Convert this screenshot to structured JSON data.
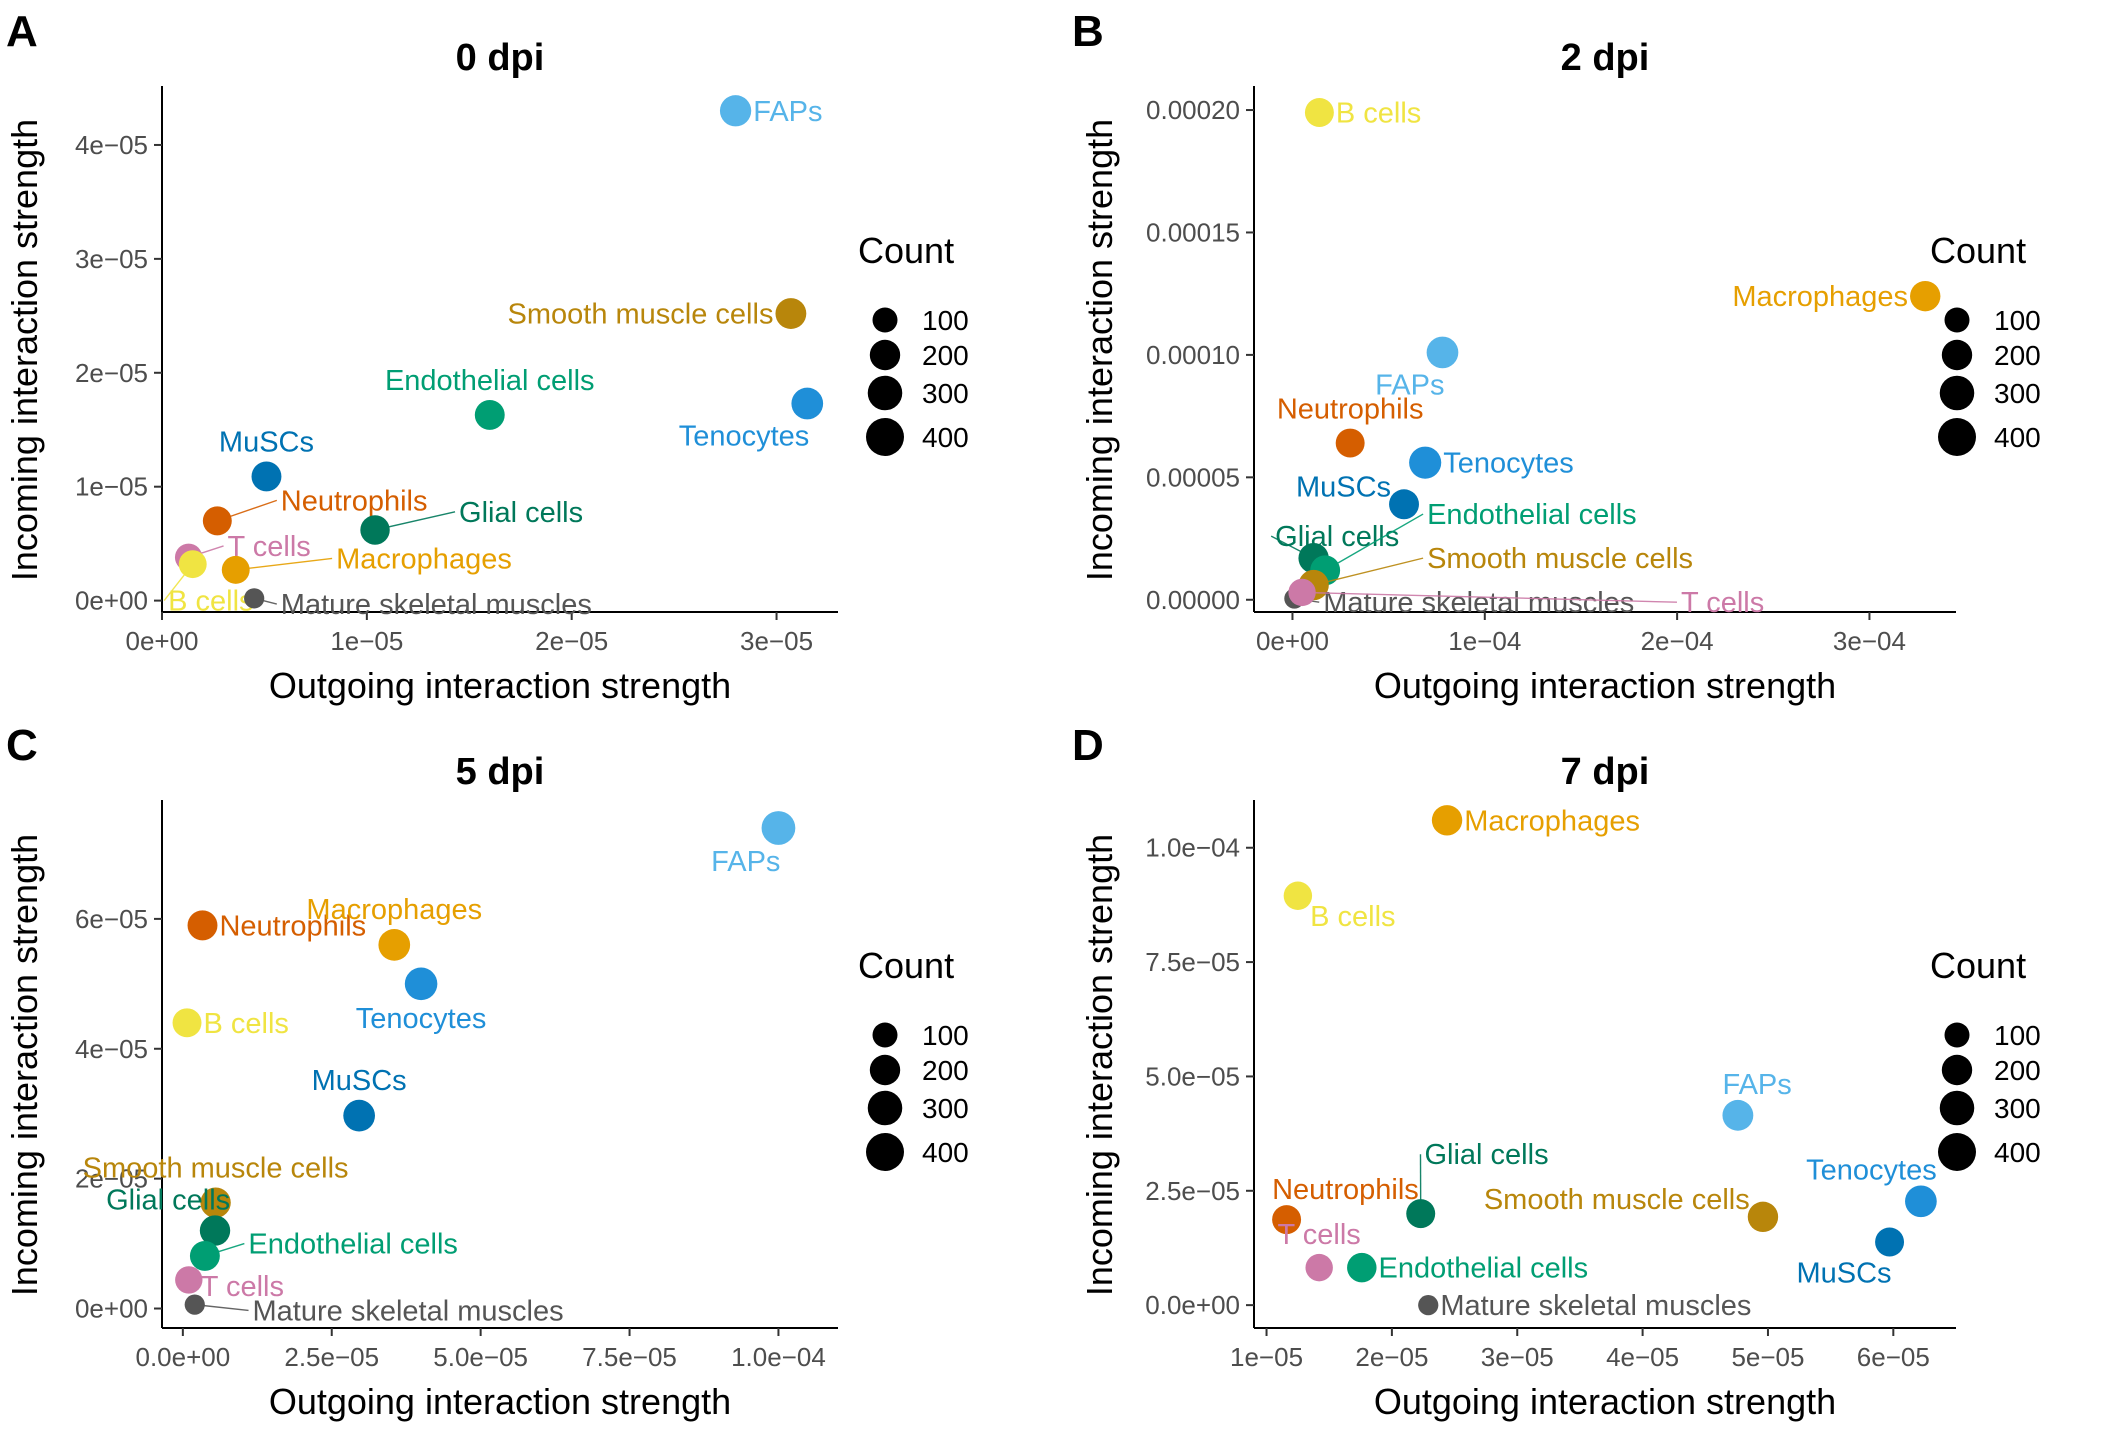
{
  "figure": {
    "xlabel": "Outgoing interaction strength",
    "ylabel": "Incoming interaction strength"
  },
  "chart_data": [
    {
      "type": "scatter",
      "panel_letter": "A",
      "title": "0 dpi",
      "xlabel": "Outgoing interaction strength",
      "ylabel": "Incoming interaction strength",
      "xlim": [
        0,
        3.3e-05
      ],
      "ylim": [
        -1e-06,
        4.5e-05
      ],
      "xticks": [
        {
          "value": 0,
          "label": "0e+00"
        },
        {
          "value": 1e-05,
          "label": "1e−05"
        },
        {
          "value": 2e-05,
          "label": "2e−05"
        },
        {
          "value": 3e-05,
          "label": "3e−05"
        }
      ],
      "yticks": [
        {
          "value": 0,
          "label": "0e+00"
        },
        {
          "value": 1e-05,
          "label": "1e−05"
        },
        {
          "value": 2e-05,
          "label": "2e−05"
        },
        {
          "value": 3e-05,
          "label": "3e−05"
        },
        {
          "value": 4e-05,
          "label": "4e−05"
        }
      ],
      "legend": {
        "title": "Count",
        "sizes": [
          100,
          200,
          300,
          400
        ],
        "labels": [
          "100",
          "200",
          "300",
          "400"
        ]
      },
      "points": [
        {
          "label": "FAPs",
          "x": 2.8e-05,
          "y": 4.3e-05,
          "count": 220,
          "color": "#56B4E9",
          "label_pos": "right"
        },
        {
          "label": "Smooth muscle cells",
          "x": 3.07e-05,
          "y": 2.52e-05,
          "count": 210,
          "color": "#B8860B",
          "label_pos": "left"
        },
        {
          "label": "Endothelial cells",
          "x": 1.6e-05,
          "y": 1.63e-05,
          "count": 190,
          "color": "#009E73",
          "label_pos": "above"
        },
        {
          "label": "Tenocytes",
          "x": 3.15e-05,
          "y": 1.73e-05,
          "count": 230,
          "color": "#1F8FD8",
          "label_pos": "below-left"
        },
        {
          "label": "MuSCs",
          "x": 5.1e-06,
          "y": 1.09e-05,
          "count": 190,
          "color": "#0072B2",
          "label_pos": "above"
        },
        {
          "label": "Neutrophils",
          "x": 2.7e-06,
          "y": 7e-06,
          "count": 170,
          "color": "#D55E00",
          "label_pos": "callout",
          "lx": 5.8e-06,
          "ly": 8.8e-06
        },
        {
          "label": "Glial cells",
          "x": 1.04e-05,
          "y": 6.2e-06,
          "count": 180,
          "color": "#00785A",
          "label_pos": "callout",
          "lx": 1.45e-05,
          "ly": 7.8e-06
        },
        {
          "label": "T cells",
          "x": 1.3e-06,
          "y": 3.8e-06,
          "count": 140,
          "color": "#CC79A7",
          "label_pos": "callout",
          "lx": 3.2e-06,
          "ly": 4.8e-06
        },
        {
          "label": "Macrophages",
          "x": 3.6e-06,
          "y": 2.7e-06,
          "count": 150,
          "color": "#E69F00",
          "label_pos": "callout",
          "lx": 8.5e-06,
          "ly": 3.7e-06
        },
        {
          "label": "B cells",
          "x": 1.5e-06,
          "y": 3.2e-06,
          "count": 150,
          "color": "#F0E442",
          "label_pos": "callout",
          "lx": 3e-07,
          "ly": 0.0
        },
        {
          "label": "Mature skeletal muscles",
          "x": 4.5e-06,
          "y": 2e-07,
          "count": 40,
          "color": "#555555",
          "label_pos": "callout",
          "lx": 5.8e-06,
          "ly": -3e-07
        }
      ]
    },
    {
      "type": "scatter",
      "panel_letter": "B",
      "title": "2 dpi",
      "xlabel": "Outgoing interaction strength",
      "ylabel": "Incoming interaction strength",
      "xlim": [
        -2e-05,
        0.000345
      ],
      "ylim": [
        -5e-06,
        0.000209
      ],
      "xticks": [
        {
          "value": 0,
          "label": "0e+00"
        },
        {
          "value": 0.0001,
          "label": "1e−04"
        },
        {
          "value": 0.0002,
          "label": "2e−04"
        },
        {
          "value": 0.0003,
          "label": "3e−04"
        }
      ],
      "yticks": [
        {
          "value": 0,
          "label": "0.00000"
        },
        {
          "value": 5e-05,
          "label": "0.00005"
        },
        {
          "value": 0.0001,
          "label": "0.00010"
        },
        {
          "value": 0.00015,
          "label": "0.00015"
        },
        {
          "value": 0.0002,
          "label": "0.00020"
        }
      ],
      "legend": {
        "title": "Count",
        "sizes": [
          100,
          200,
          300,
          400
        ],
        "labels": [
          "100",
          "200",
          "300",
          "400"
        ]
      },
      "points": [
        {
          "label": "B cells",
          "x": 1.4e-05,
          "y": 0.000199,
          "count": 170,
          "color": "#F0E442",
          "label_pos": "right"
        },
        {
          "label": "Macrophages",
          "x": 0.000329,
          "y": 0.000124,
          "count": 200,
          "color": "#E69F00",
          "label_pos": "left"
        },
        {
          "label": "FAPs",
          "x": 7.8e-05,
          "y": 0.000101,
          "count": 230,
          "color": "#56B4E9",
          "label_pos": "below-left"
        },
        {
          "label": "Neutrophils",
          "x": 3e-05,
          "y": 6.4e-05,
          "count": 170,
          "color": "#D55E00",
          "label_pos": "above"
        },
        {
          "label": "Tenocytes",
          "x": 6.9e-05,
          "y": 5.6e-05,
          "count": 240,
          "color": "#1F8FD8",
          "label_pos": "right"
        },
        {
          "label": "MuSCs",
          "x": 5.8e-05,
          "y": 3.9e-05,
          "count": 190,
          "color": "#0072B2",
          "label_pos": "left-up"
        },
        {
          "label": "Glial cells",
          "x": 1.1e-05,
          "y": 1.7e-05,
          "count": 200,
          "color": "#00785A",
          "label_pos": "callout",
          "lx": -9e-06,
          "ly": 2.6e-05
        },
        {
          "label": "Endothelial cells",
          "x": 1.7e-05,
          "y": 1.2e-05,
          "count": 190,
          "color": "#009E73",
          "label_pos": "callout",
          "lx": 7e-05,
          "ly": 3.5e-05
        },
        {
          "label": "Smooth muscle cells",
          "x": 1.1e-05,
          "y": 6e-06,
          "count": 200,
          "color": "#B8860B",
          "label_pos": "callout",
          "lx": 7e-05,
          "ly": 1.7e-05
        },
        {
          "label": "Mature skeletal muscles",
          "x": 1e-06,
          "y": 5e-07,
          "count": 40,
          "color": "#555555",
          "label_pos": "callout",
          "lx": 1.6e-05,
          "ly": -1e-06
        },
        {
          "label": "T cells",
          "x": 5e-06,
          "y": 3e-06,
          "count": 140,
          "color": "#CC79A7",
          "label_pos": "callout",
          "lx": 0.000202,
          "ly": -1e-06
        }
      ]
    },
    {
      "type": "scatter",
      "panel_letter": "C",
      "title": "5 dpi",
      "xlabel": "Outgoing interaction strength",
      "ylabel": "Incoming interaction strength",
      "xlim": [
        -3.5e-06,
        0.00011
      ],
      "ylim": [
        -3e-06,
        7.8e-05
      ],
      "xticks": [
        {
          "value": 0,
          "label": "0.0e+00"
        },
        {
          "value": 2.5e-05,
          "label": "2.5e−05"
        },
        {
          "value": 5e-05,
          "label": "5.0e−05"
        },
        {
          "value": 7.5e-05,
          "label": "7.5e−05"
        },
        {
          "value": 0.0001,
          "label": "1.0e−04"
        }
      ],
      "yticks": [
        {
          "value": 0,
          "label": "0e+00"
        },
        {
          "value": 2e-05,
          "label": "2e−05"
        },
        {
          "value": 4e-05,
          "label": "4e−05"
        },
        {
          "value": 6e-05,
          "label": "6e−05"
        }
      ],
      "legend": {
        "title": "Count",
        "sizes": [
          100,
          200,
          300,
          400
        ],
        "labels": [
          "100",
          "200",
          "300",
          "400"
        ]
      },
      "points": [
        {
          "label": "FAPs",
          "x": 0.0001,
          "y": 7.4e-05,
          "count": 280,
          "color": "#56B4E9",
          "label_pos": "below-left"
        },
        {
          "label": "Neutrophils",
          "x": 3.3e-06,
          "y": 5.9e-05,
          "count": 190,
          "color": "#D55E00",
          "label_pos": "right"
        },
        {
          "label": "Macrophages",
          "x": 3.55e-05,
          "y": 5.6e-05,
          "count": 230,
          "color": "#E69F00",
          "label_pos": "above"
        },
        {
          "label": "Tenocytes",
          "x": 4e-05,
          "y": 5e-05,
          "count": 250,
          "color": "#1F8FD8",
          "label_pos": "below"
        },
        {
          "label": "B cells",
          "x": 7e-07,
          "y": 4.4e-05,
          "count": 170,
          "color": "#F0E442",
          "label_pos": "right"
        },
        {
          "label": "MuSCs",
          "x": 2.96e-05,
          "y": 2.97e-05,
          "count": 230,
          "color": "#0072B2",
          "label_pos": "above"
        },
        {
          "label": "Smooth muscle cells",
          "x": 5.5e-06,
          "y": 1.63e-05,
          "count": 200,
          "color": "#B8860B",
          "label_pos": "above"
        },
        {
          "label": "Glial cells",
          "x": 5.4e-06,
          "y": 1.2e-05,
          "count": 200,
          "color": "#00785A",
          "label_pos": "above-left"
        },
        {
          "label": "Endothelial cells",
          "x": 3.7e-06,
          "y": 8.1e-06,
          "count": 190,
          "color": "#009E73",
          "label_pos": "callout",
          "lx": 1.1e-05,
          "ly": 1e-05
        },
        {
          "label": "T cells",
          "x": 1e-06,
          "y": 4.4e-06,
          "count": 140,
          "color": "#CC79A7",
          "label_pos": "callout",
          "lx": 3e-06,
          "ly": 3.5e-06
        },
        {
          "label": "Mature skeletal muscles",
          "x": 2e-06,
          "y": 6e-07,
          "count": 40,
          "color": "#555555",
          "label_pos": "callout",
          "lx": 1.17e-05,
          "ly": -3e-07
        }
      ]
    },
    {
      "type": "scatter",
      "panel_letter": "D",
      "title": "7 dpi",
      "xlabel": "Outgoing interaction strength",
      "ylabel": "Incoming interaction strength",
      "xlim": [
        9e-06,
        6.5e-05
      ],
      "ylim": [
        -5e-06,
        0.00011
      ],
      "xticks": [
        {
          "value": 1e-05,
          "label": "1e−05"
        },
        {
          "value": 2e-05,
          "label": "2e−05"
        },
        {
          "value": 3e-05,
          "label": "3e−05"
        },
        {
          "value": 4e-05,
          "label": "4e−05"
        },
        {
          "value": 5e-05,
          "label": "5e−05"
        },
        {
          "value": 6e-05,
          "label": "6e−05"
        }
      ],
      "yticks": [
        {
          "value": 0,
          "label": "0.0e+00"
        },
        {
          "value": 2.5e-05,
          "label": "2.5e−05"
        },
        {
          "value": 5e-05,
          "label": "5.0e−05"
        },
        {
          "value": 7.5e-05,
          "label": "7.5e−05"
        },
        {
          "value": 0.0001,
          "label": "1.0e−04"
        }
      ],
      "legend": {
        "title": "Count",
        "sizes": [
          100,
          200,
          300,
          400
        ],
        "labels": [
          "100",
          "200",
          "300",
          "400"
        ]
      },
      "points": [
        {
          "label": "Macrophages",
          "x": 2.44e-05,
          "y": 0.000106,
          "count": 200,
          "color": "#E69F00",
          "label_pos": "right"
        },
        {
          "label": "B cells",
          "x": 1.25e-05,
          "y": 8.95e-05,
          "count": 160,
          "color": "#F0E442",
          "label_pos": "right-down"
        },
        {
          "label": "FAPs",
          "x": 4.76e-05,
          "y": 4.15e-05,
          "count": 210,
          "color": "#56B4E9",
          "label_pos": "above-right"
        },
        {
          "label": "Glial cells",
          "x": 2.23e-05,
          "y": 2e-05,
          "count": 170,
          "color": "#00785A",
          "label_pos": "callout",
          "lx": 2.26e-05,
          "ly": 3.3e-05
        },
        {
          "label": "Neutrophils",
          "x": 1.16e-05,
          "y": 1.87e-05,
          "count": 170,
          "color": "#D55E00",
          "label_pos": "above-right"
        },
        {
          "label": "Smooth muscle cells",
          "x": 4.96e-05,
          "y": 1.93e-05,
          "count": 200,
          "color": "#B8860B",
          "label_pos": "left-up"
        },
        {
          "label": "Tenocytes",
          "x": 6.22e-05,
          "y": 2.27e-05,
          "count": 230,
          "color": "#1F8FD8",
          "label_pos": "above-left"
        },
        {
          "label": "T cells",
          "x": 1.42e-05,
          "y": 8.2e-06,
          "count": 140,
          "color": "#CC79A7",
          "label_pos": "above"
        },
        {
          "label": "Endothelial cells",
          "x": 1.76e-05,
          "y": 8.2e-06,
          "count": 180,
          "color": "#009E73",
          "label_pos": "right"
        },
        {
          "label": "MuSCs",
          "x": 5.97e-05,
          "y": 1.38e-05,
          "count": 170,
          "color": "#0072B2",
          "label_pos": "below-left"
        },
        {
          "label": "Mature skeletal muscles",
          "x": 2.29e-05,
          "y": 0.0,
          "count": 40,
          "color": "#555555",
          "label_pos": "right"
        }
      ]
    }
  ]
}
